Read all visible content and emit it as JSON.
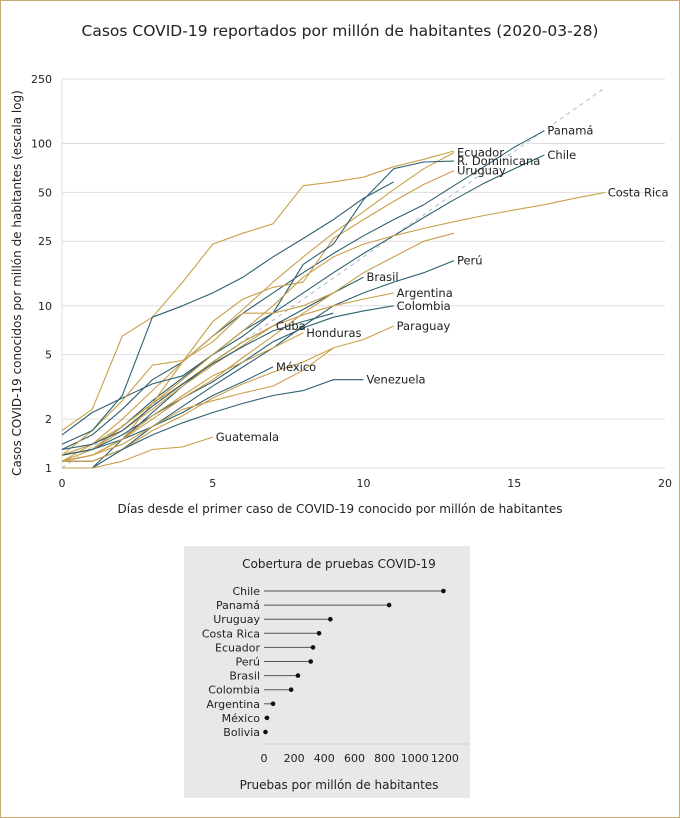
{
  "chart_data": [
    {
      "type": "line",
      "title": "Casos COVID-19 reportados por millón de habitantes (2020-03-28)",
      "xlabel": "Días desde el primer caso de COVID-19 conocido por millón de habitantes",
      "ylabel": "Casos COVID-19 conocidos por millón de habitantes (escala log)",
      "yscale": "log",
      "xlim": [
        0,
        20
      ],
      "ylim": [
        1,
        250
      ],
      "x_ticks": [
        0,
        5,
        10,
        15,
        20
      ],
      "y_ticks": [
        1,
        2,
        5,
        10,
        25,
        50,
        100,
        250
      ],
      "grid": true,
      "reference_line": {
        "style": "dashed",
        "points": [
          [
            0,
            1
          ],
          [
            18,
            220
          ]
        ]
      },
      "colors": {
        "blue": "#2e5f72",
        "gold": "#c9a04a",
        "grid": "#dddddd",
        "reference": "#b8c4cc"
      },
      "series": [
        {
          "name": "Panamá",
          "color": "blue",
          "x": [
            0,
            1,
            2,
            3,
            4,
            5,
            6,
            7,
            8,
            9,
            10,
            11,
            12,
            13,
            14,
            15,
            16
          ],
          "y": [
            1.3,
            1.6,
            2.3,
            3.5,
            4.5,
            6.5,
            9,
            12,
            16,
            21,
            27,
            34,
            42,
            55,
            72,
            95,
            120
          ]
        },
        {
          "name": "Chile",
          "color": "blue",
          "x": [
            0,
            1,
            2,
            3,
            4,
            5,
            6,
            7,
            8,
            9,
            10,
            11,
            12,
            13,
            14,
            15,
            16
          ],
          "y": [
            1.2,
            1.3,
            1.8,
            2.6,
            3.6,
            5,
            7,
            9,
            12,
            16,
            21,
            27,
            35,
            45,
            57,
            70,
            85
          ]
        },
        {
          "name": "Ecuador",
          "color": "gold",
          "x": [
            0,
            1,
            2,
            3,
            4,
            5,
            6,
            7,
            8,
            9,
            10,
            11,
            12,
            13
          ],
          "y": [
            1.1,
            1.4,
            2,
            3,
            4.5,
            6.5,
            9.5,
            14,
            20,
            28,
            38,
            52,
            70,
            88
          ]
        },
        {
          "name": "Uruguay",
          "color": "gold",
          "x": [
            0,
            1,
            2,
            3,
            4,
            5,
            6,
            7,
            8,
            9,
            10,
            11,
            12,
            13
          ],
          "y": [
            1.1,
            1.2,
            1.5,
            2.5,
            4.5,
            8,
            11,
            13,
            14,
            26,
            34,
            44,
            56,
            68
          ]
        },
        {
          "name": "R. Dominicana",
          "color": "blue",
          "x": [
            0,
            1,
            2,
            3,
            4,
            5,
            6,
            7,
            8,
            9,
            10,
            11,
            12,
            13
          ],
          "y": [
            1.6,
            2.2,
            2.7,
            3.3,
            3.7,
            5,
            6.5,
            9,
            18,
            24,
            45,
            70,
            77,
            78
          ]
        },
        {
          "name": "Costa Rica",
          "color": "gold",
          "x": [
            0,
            1,
            2,
            3,
            4,
            5,
            6,
            7,
            8,
            9,
            10,
            11,
            12,
            13,
            14,
            15,
            16,
            17,
            18
          ],
          "y": [
            1.1,
            1.3,
            1.8,
            2.5,
            3.5,
            5,
            7,
            10,
            15,
            20,
            24,
            27,
            30,
            33,
            36,
            39,
            42,
            46,
            50
          ]
        },
        {
          "name": "Perú",
          "color": "blue",
          "x": [
            0,
            1,
            2,
            3,
            4,
            5,
            6,
            7,
            8,
            9,
            10,
            11,
            12,
            13
          ],
          "y": [
            1.1,
            1.1,
            1.3,
            1.8,
            2.4,
            3.2,
            4.2,
            5.5,
            7.5,
            10,
            12,
            14,
            16,
            19
          ]
        },
        {
          "name": "Brasil",
          "color": "blue",
          "x": [
            0,
            1,
            2,
            3,
            4,
            5,
            6,
            7,
            8,
            9,
            10
          ],
          "y": [
            1,
            1,
            1.5,
            2.2,
            3.2,
            4.5,
            6,
            7.5,
            9.5,
            12,
            15
          ]
        },
        {
          "name": "Argentina",
          "color": "gold",
          "x": [
            0,
            1,
            2,
            3,
            4,
            5,
            6,
            7,
            8,
            9,
            10,
            11
          ],
          "y": [
            1.2,
            1.4,
            1.8,
            2.5,
            3.3,
            4.5,
            6,
            7.5,
            8.8,
            10,
            11,
            12
          ]
        },
        {
          "name": "Colombia",
          "color": "blue",
          "x": [
            0,
            1,
            2,
            3,
            4,
            5,
            6,
            7,
            8,
            9,
            10,
            11
          ],
          "y": [
            1.2,
            1.3,
            1.6,
            2.1,
            2.7,
            3.4,
            4.5,
            6,
            7.3,
            8.5,
            9.3,
            10
          ]
        },
        {
          "name": "Paraguay",
          "color": "gold",
          "x": [
            0,
            1,
            2,
            3,
            4,
            5,
            6,
            7,
            8,
            9,
            10,
            11
          ],
          "y": [
            1.1,
            1.1,
            1.3,
            1.7,
            2.1,
            2.7,
            3.3,
            3.9,
            4.5,
            5.5,
            6.2,
            7.5
          ]
        },
        {
          "name": "Cuba",
          "color": "gold",
          "x": [
            0,
            1,
            2,
            3,
            4,
            5,
            6,
            7
          ],
          "y": [
            1.2,
            1.3,
            1.7,
            2.3,
            3.2,
            4.3,
            5.7,
            7.5
          ]
        },
        {
          "name": "Honduras",
          "color": "gold",
          "x": [
            0,
            1,
            2,
            3,
            4,
            5,
            6,
            7,
            8
          ],
          "y": [
            1.1,
            1.2,
            1.5,
            2.1,
            2.8,
            3.7,
            4.5,
            5.5,
            6.8
          ]
        },
        {
          "name": "México",
          "color": "blue",
          "x": [
            0,
            1,
            2,
            3,
            4,
            5,
            6,
            7
          ],
          "y": [
            1.2,
            1.3,
            1.5,
            1.8,
            2.2,
            2.8,
            3.4,
            4.2
          ]
        },
        {
          "name": "Venezuela",
          "color": "blue",
          "x": [
            0,
            1,
            2,
            3,
            4,
            5,
            6,
            7,
            8,
            9,
            10
          ],
          "y": [
            1,
            1,
            1.3,
            1.6,
            1.9,
            2.2,
            2.5,
            2.8,
            3,
            3.5,
            3.5
          ]
        },
        {
          "name": "Guatemala",
          "color": "gold",
          "x": [
            0,
            1,
            2,
            3,
            4,
            5
          ],
          "y": [
            1,
            1,
            1.1,
            1.3,
            1.35,
            1.55
          ]
        },
        {
          "name": "",
          "color": "gold",
          "x": [
            0,
            1,
            2,
            3,
            4,
            5,
            6,
            7,
            8,
            9,
            10,
            11,
            12,
            13
          ],
          "y": [
            1.1,
            1.2,
            1.5,
            2,
            2.7,
            3.5,
            4.8,
            6.5,
            9,
            12,
            16,
            20,
            25,
            28
          ]
        },
        {
          "name": "",
          "color": "gold",
          "x": [
            0,
            1,
            2,
            3,
            4,
            5,
            6,
            7,
            8,
            9,
            10,
            11,
            12,
            13
          ],
          "y": [
            1.7,
            2.3,
            6.5,
            8.5,
            14,
            24,
            28,
            32,
            55,
            58,
            62,
            72,
            80,
            90
          ]
        },
        {
          "name": "",
          "color": "gold",
          "x": [
            0,
            1,
            2,
            3,
            4,
            5,
            6,
            7,
            8,
            9
          ],
          "y": [
            1.2,
            1.7,
            2.6,
            4.3,
            4.6,
            6,
            9,
            9,
            10,
            12
          ]
        },
        {
          "name": "",
          "color": "blue",
          "x": [
            0,
            1,
            2,
            3,
            4,
            5,
            6,
            7,
            8,
            9,
            10,
            11
          ],
          "y": [
            1.4,
            1.7,
            2.8,
            8.5,
            10,
            12,
            15,
            20,
            26,
            34,
            46,
            58
          ]
        },
        {
          "name": "",
          "color": "gold",
          "x": [
            0,
            1,
            2,
            3,
            4,
            5,
            6,
            7,
            8,
            9
          ],
          "y": [
            1.1,
            1.2,
            1.4,
            1.8,
            2.3,
            2.6,
            2.9,
            3.2,
            4,
            5.5
          ]
        },
        {
          "name": "",
          "color": "blue",
          "x": [
            0,
            1,
            2,
            3,
            4,
            5,
            6,
            7,
            8,
            9
          ],
          "y": [
            1.3,
            1.4,
            1.7,
            2.4,
            3.3,
            4.4,
            5.6,
            7,
            8,
            9
          ]
        }
      ],
      "labels": [
        {
          "text": "Panamá",
          "series": "Panamá"
        },
        {
          "text": "Chile",
          "series": "Chile"
        },
        {
          "text": "Ecuador",
          "series": "Ecuador"
        },
        {
          "text": "Uruguay",
          "series": "Uruguay"
        },
        {
          "text": "R. Dominicana",
          "series": "R. Dominicana"
        },
        {
          "text": "Costa Rica",
          "series": "Costa Rica"
        },
        {
          "text": "Perú",
          "series": "Perú"
        },
        {
          "text": "Brasil",
          "series": "Brasil"
        },
        {
          "text": "Argentina",
          "series": "Argentina"
        },
        {
          "text": "Colombia",
          "series": "Colombia"
        },
        {
          "text": "Paraguay",
          "series": "Paraguay"
        },
        {
          "text": "Cuba",
          "series": "Cuba"
        },
        {
          "text": "Honduras",
          "series": "Honduras"
        },
        {
          "text": "México",
          "series": "México"
        },
        {
          "text": "Venezuela",
          "series": "Venezuela"
        },
        {
          "text": "Guatemala",
          "series": "Guatemala"
        }
      ]
    },
    {
      "type": "bar",
      "subtype": "lollipop",
      "title": "Cobertura de pruebas COVID-19",
      "xlabel": "Pruebas por millón de habitantes",
      "xlim": [
        0,
        1300
      ],
      "x_ticks": [
        0,
        200,
        400,
        600,
        800,
        1000,
        1200
      ],
      "categories": [
        "Chile",
        "Panamá",
        "Uruguay",
        "Costa Rica",
        "Ecuador",
        "Perú",
        "Brasil",
        "Colombia",
        "Argentina",
        "México",
        "Bolivia"
      ],
      "values": [
        1190,
        830,
        440,
        365,
        325,
        310,
        225,
        180,
        60,
        20,
        10
      ],
      "background": "#e8e8e8"
    }
  ]
}
